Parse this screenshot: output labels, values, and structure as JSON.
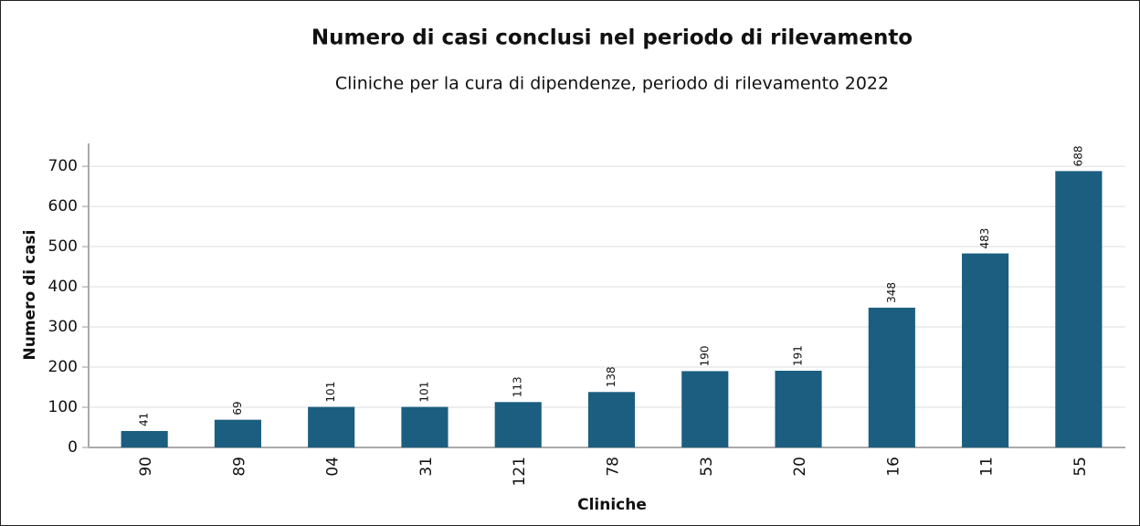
{
  "chart_data": {
    "type": "bar",
    "title": "Numero di casi conclusi nel periodo di rilevamento",
    "subtitle": "Cliniche per la cura di dipendenze, periodo di rilevamento 2022",
    "x_label": "Cliniche",
    "y_label": "Numero di casi",
    "categories": [
      "90",
      "89",
      "04",
      "31",
      "121",
      "78",
      "53",
      "20",
      "16",
      "11",
      "55"
    ],
    "values": [
      41,
      69,
      101,
      101,
      113,
      138,
      190,
      191,
      348,
      483,
      688
    ],
    "color": "#1b5e80",
    "ylim": [
      0,
      757
    ],
    "yticks": [
      0,
      100,
      200,
      300,
      400,
      500,
      600,
      700
    ],
    "grid": true
  }
}
